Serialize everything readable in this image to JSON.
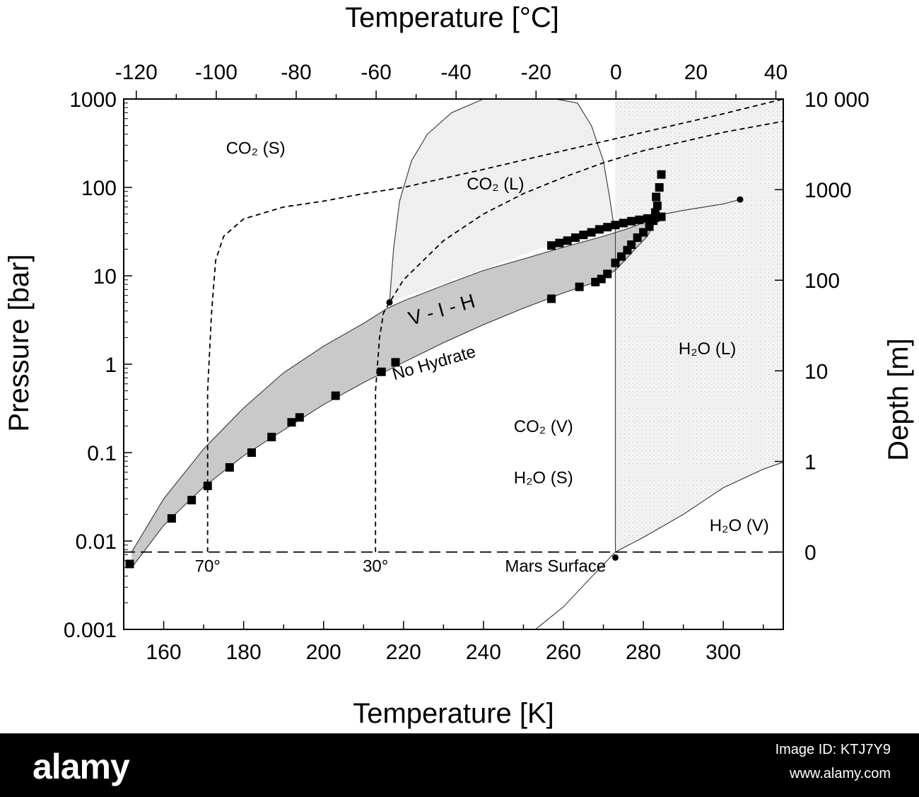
{
  "chart_data": {
    "type": "scatter",
    "title": "",
    "xlabel": "Temperature [K]",
    "x2label": "Temperature [°C]",
    "ylabel": "Pressure [bar]",
    "y2label": "Depth [m]",
    "xlim": [
      150,
      315
    ],
    "ylim": [
      0.001,
      1000
    ],
    "y_scale": "log",
    "x_ticks": [
      160,
      180,
      200,
      220,
      240,
      260,
      280,
      300
    ],
    "x2_ticks": [
      "-120",
      "-100",
      "-80",
      "-60",
      "-40",
      "-20",
      "0",
      "20",
      "40"
    ],
    "y_tick_labels": [
      "0.001",
      "0.01",
      "0.1",
      "1",
      "10",
      "100",
      "1000"
    ],
    "y2_tick_labels": [
      "0",
      "1",
      "10",
      "100",
      "1000",
      "10 000"
    ],
    "region_labels": [
      {
        "text": "CO₂ (S)",
        "x": 183,
        "y": 240
      },
      {
        "text": "CO₂ (L)",
        "x": 243,
        "y": 95
      },
      {
        "text": "V - I - H",
        "x": 230,
        "y": 3.5
      },
      {
        "text": "No Hydrate",
        "x": 228,
        "y": 0.9
      },
      {
        "text": "H₂O (L)",
        "x": 296,
        "y": 1.3
      },
      {
        "text": "CO₂ (V)",
        "x": 255,
        "y": 0.17
      },
      {
        "text": "H₂O (S)",
        "x": 255,
        "y": 0.045
      },
      {
        "text": "H₂O (V)",
        "x": 304,
        "y": 0.013
      }
    ],
    "annotations": [
      {
        "text": "70°",
        "x": 171,
        "y": 0.0045
      },
      {
        "text": "30°",
        "x": 213,
        "y": 0.0045
      },
      {
        "text": "Mars Surface",
        "x": 258,
        "y": 0.0045
      }
    ],
    "mars_surface_pressure": 0.0075,
    "series": [
      {
        "marker": "square",
        "x": [
          151.5,
          162,
          167,
          171,
          176.5,
          182,
          187,
          192,
          194,
          203,
          214.5,
          218,
          257,
          264,
          268,
          269.5,
          271,
          273,
          274.5,
          276,
          277,
          278.5,
          280,
          281.5,
          282.5,
          283,
          283.5,
          283.2,
          284,
          284.5
        ],
        "y": [
          0.0055,
          0.018,
          0.029,
          0.042,
          0.068,
          0.1,
          0.15,
          0.22,
          0.25,
          0.44,
          0.82,
          1.05,
          5.5,
          7.5,
          8.5,
          9.2,
          10.5,
          14,
          16.5,
          19.5,
          22.5,
          27,
          31,
          36,
          42,
          52,
          62,
          78,
          100,
          140
        ]
      },
      {
        "marker": "square",
        "x": [
          257,
          259,
          261,
          263,
          265,
          267,
          269,
          271,
          273,
          275,
          277,
          279,
          281,
          283,
          284.5
        ],
        "y": [
          22,
          23.5,
          25,
          27,
          29,
          31,
          33.5,
          35.5,
          37.5,
          39.5,
          41.5,
          43,
          44.5,
          45.5,
          46.5
        ]
      }
    ],
    "lines": [
      {
        "style": "hydrate-upper",
        "x": [
          152,
          160,
          170,
          180,
          190,
          200,
          210,
          216,
          220,
          230,
          240,
          250,
          260,
          270,
          276,
          283.5
        ],
        "y": [
          0.0075,
          0.03,
          0.11,
          0.32,
          0.8,
          1.6,
          2.9,
          4.3,
          5.2,
          7.8,
          11.5,
          15.5,
          21,
          28,
          34,
          46
        ]
      },
      {
        "style": "hydrate-lower",
        "x": [
          152,
          160,
          170,
          180,
          190,
          200,
          210,
          220,
          230,
          240,
          250,
          260,
          267,
          273,
          277,
          281,
          283.5
        ],
        "y": [
          0.005,
          0.015,
          0.041,
          0.092,
          0.18,
          0.35,
          0.62,
          1.05,
          1.75,
          2.8,
          4.3,
          6.4,
          8.2,
          11.5,
          18,
          28,
          46
        ]
      },
      {
        "style": "co2-sl",
        "x": [
          216.5,
          217.5,
          219,
          222,
          226,
          232,
          240,
          250,
          258,
          263.5,
          267,
          270,
          271.5,
          272.5
        ],
        "y": [
          5,
          20,
          70,
          200,
          400,
          700,
          1000,
          1000,
          1000,
          900,
          500,
          200,
          80,
          40
        ]
      },
      {
        "style": "co2-lv",
        "x": [
          273,
          280,
          290,
          300,
          304.2
        ],
        "y": [
          35,
          45,
          55,
          65,
          73
        ]
      },
      {
        "style": "h2o-melt",
        "x": [
          273,
          273,
          273
        ],
        "y": [
          0.0075,
          1,
          40
        ]
      },
      {
        "style": "h2o-vapor",
        "x": [
          253,
          260,
          266,
          273,
          280,
          290,
          300,
          310,
          315
        ],
        "y": [
          0.001,
          0.0018,
          0.0035,
          0.0075,
          0.011,
          0.02,
          0.04,
          0.065,
          0.078
        ]
      },
      {
        "style": "dashed-70",
        "x": [
          171,
          171,
          172,
          173,
          175,
          180,
          190,
          200,
          210,
          220,
          240,
          260,
          280,
          300,
          315
        ],
        "y": [
          0.0075,
          0.5,
          4,
          15,
          28,
          44,
          60,
          70,
          85,
          100,
          160,
          260,
          420,
          680,
          1000
        ]
      },
      {
        "style": "dashed-30",
        "x": [
          213,
          213,
          214,
          215,
          216.5,
          220,
          230,
          240,
          250,
          260,
          270,
          280,
          290,
          300,
          315
        ],
        "y": [
          0.0075,
          0.5,
          2,
          3.8,
          5,
          9,
          25,
          50,
          85,
          130,
          190,
          260,
          330,
          420,
          560
        ]
      }
    ],
    "points": [
      {
        "x": 216.5,
        "y": 5
      },
      {
        "x": 273,
        "y": 0.0065
      },
      {
        "x": 304.2,
        "y": 73
      }
    ]
  },
  "footer": {
    "brand": "alamy",
    "image_id": "Image ID: KTJ7Y9",
    "url": "www.alamy.com"
  }
}
